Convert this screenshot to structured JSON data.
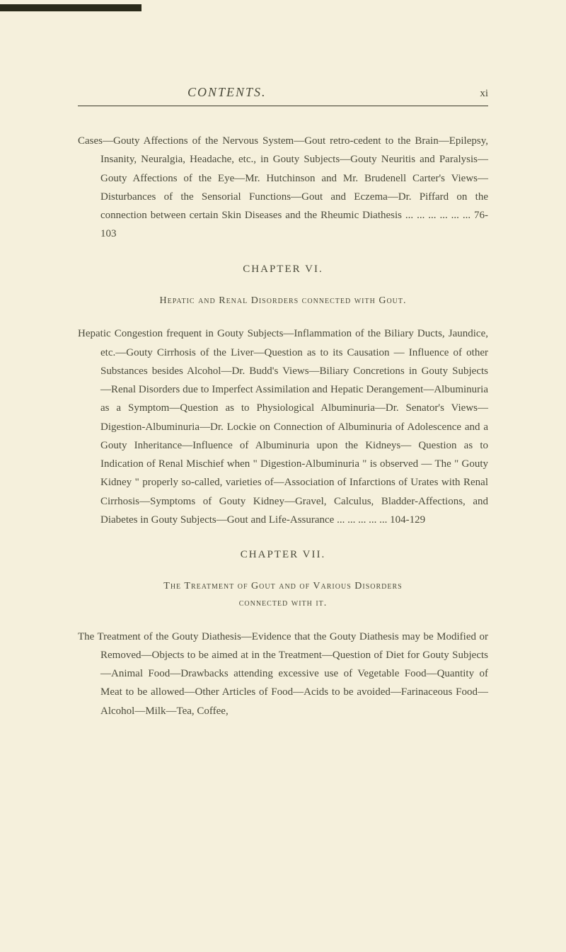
{
  "header": {
    "title": "CONTENTS.",
    "page_number": "xi"
  },
  "block1": {
    "text": "Cases—Gouty Affections of the Nervous System—Gout retro-cedent to the Brain—Epilepsy, Insanity, Neuralgia, Headache, etc., in Gouty Subjects—Gouty Neuritis and Paralysis—Gouty Affections of the Eye—Mr. Hutchinson and Mr. Brudenell Carter's Views—Disturbances of the Sensorial Functions—Gout and Eczema—Dr. Piffard on the connection between certain Skin Diseases and the Rheumic Diathesis ...    ...    ...    ...    ...    ...  76-103"
  },
  "chapter6": {
    "heading": "CHAPTER VI.",
    "section_heading": "Hepatic and Renal Disorders connected with Gout.",
    "para": "Hepatic Congestion frequent in Gouty Subjects—Inflammation of the Biliary Ducts, Jaundice, etc.—Gouty Cirrhosis of the Liver—Question as to its Causation — Influence of other Substances besides Alcohol—Dr. Budd's Views—Biliary Concretions in Gouty Subjects —Renal Disorders due to Imperfect Assimilation and Hepatic Derangement—Albuminuria as a Symptom—Question as to Physiological Albuminuria—Dr. Senator's Views—Digestion-Albuminuria—Dr. Lockie on Connection of Albuminuria of Adolescence and a Gouty Inheritance—Influence of Albuminuria upon the Kidneys— Question as to Indication of Renal Mischief when \" Digestion-Albuminuria \" is observed — The \" Gouty Kidney \" properly so-called, varieties of—Association of Infarctions of Urates with Renal Cirrhosis—Symptoms of Gouty Kidney—Gravel, Calculus, Bladder-Affections, and Diabetes in Gouty Subjects—Gout and Life-Assurance    ...    ...    ...    ...    ...  104-129"
  },
  "chapter7": {
    "heading": "CHAPTER VII.",
    "section_heading_line1": "The Treatment of Gout and of Various Disorders",
    "section_heading_line2": "connected with it.",
    "para": "The Treatment of the Gouty Diathesis—Evidence that the Gouty Diathesis may be Modified or Removed—Objects to be aimed at in the Treatment—Question of Diet for Gouty Subjects—Animal Food—Drawbacks attending excessive use of Vegetable Food—Quantity of Meat to be allowed—Other Articles of Food—Acids to be avoided—Farinaceous Food—Alcohol—Milk—Tea, Coffee,"
  }
}
